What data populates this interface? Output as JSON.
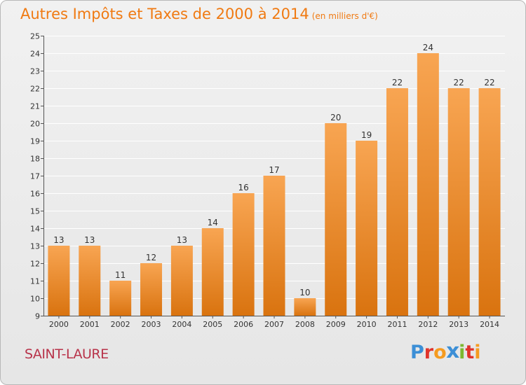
{
  "header": {
    "title": "Autres Impôts et Taxes de 2000 à 2014",
    "unit": "(en milliers d'€)"
  },
  "commune": "SAINT-LAURE",
  "logo": {
    "letters": [
      {
        "char": "P",
        "color": "#3c8fd6"
      },
      {
        "char": "r",
        "color": "#e0342b"
      },
      {
        "char": "o",
        "color": "#f59b1f"
      },
      {
        "char": "x",
        "color": "#3c8fd6"
      },
      {
        "char": "i",
        "color": "#7cb82f"
      },
      {
        "char": "t",
        "color": "#e0342b"
      },
      {
        "char": "i",
        "color": "#f59b1f"
      }
    ]
  },
  "colors": {
    "title": "#f07a12",
    "bar_light": "#f8a552",
    "bar_dark": "#d9730f",
    "grid": "#ffffff",
    "commune": "#b8334a"
  },
  "chart_data": {
    "type": "bar",
    "title": "Autres Impôts et Taxes de 2000 à 2014",
    "subtitle": "(en milliers d'€)",
    "xlabel": "",
    "ylabel": "",
    "categories": [
      "2000",
      "2001",
      "2002",
      "2003",
      "2004",
      "2005",
      "2006",
      "2007",
      "2008",
      "2009",
      "2010",
      "2011",
      "2012",
      "2013",
      "2014"
    ],
    "values": [
      13,
      13,
      11,
      12,
      13,
      14,
      16,
      17,
      10,
      20,
      19,
      22,
      24,
      22,
      22
    ],
    "ylim": [
      9,
      25
    ],
    "yticks": [
      9,
      10,
      11,
      12,
      13,
      14,
      15,
      16,
      17,
      18,
      19,
      20,
      21,
      22,
      23,
      24,
      25
    ],
    "grid": true,
    "data_labels": true
  }
}
